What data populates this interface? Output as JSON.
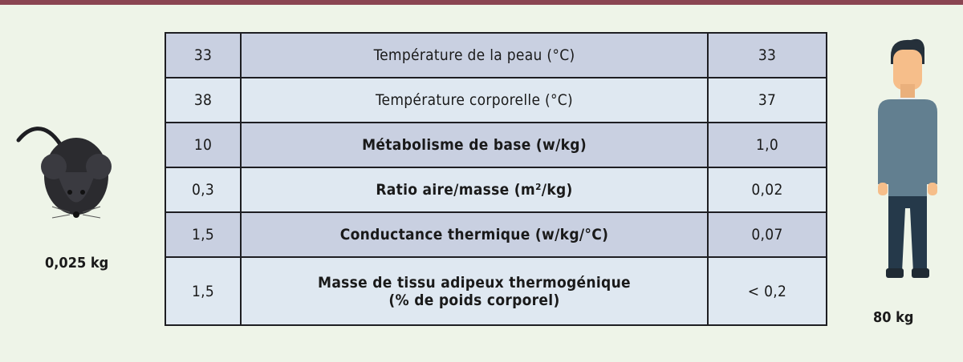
{
  "colors": {
    "top_bar": "#8a4552",
    "background": "#eef4e8",
    "row_dark": "#c9d0e1",
    "row_light": "#dfe8f1"
  },
  "mouse": {
    "icon": "mouse-icon",
    "weight": "0,025 kg"
  },
  "human": {
    "icon": "man-icon",
    "weight": "80 kg"
  },
  "rows": [
    {
      "mouse": "33",
      "label": "Température de la peau (°C)",
      "human": "33",
      "bold": false
    },
    {
      "mouse": "38",
      "label": "Température corporelle (°C)",
      "human": "37",
      "bold": false
    },
    {
      "mouse": "10",
      "label": "Métabolisme de base (w/kg)",
      "human": "1,0",
      "bold": true
    },
    {
      "mouse": "0,3",
      "label": "Ratio aire/masse (m²/kg)",
      "human": "0,02",
      "bold": true
    },
    {
      "mouse": "1,5",
      "label": "Conductance thermique (w/kg/°C)",
      "human": "0,07",
      "bold": true
    },
    {
      "mouse": "1,5",
      "label": "Masse de tissu adipeux thermogénique",
      "label2": "(% de poids corporel)",
      "human": "< 0,2",
      "bold": true
    }
  ]
}
